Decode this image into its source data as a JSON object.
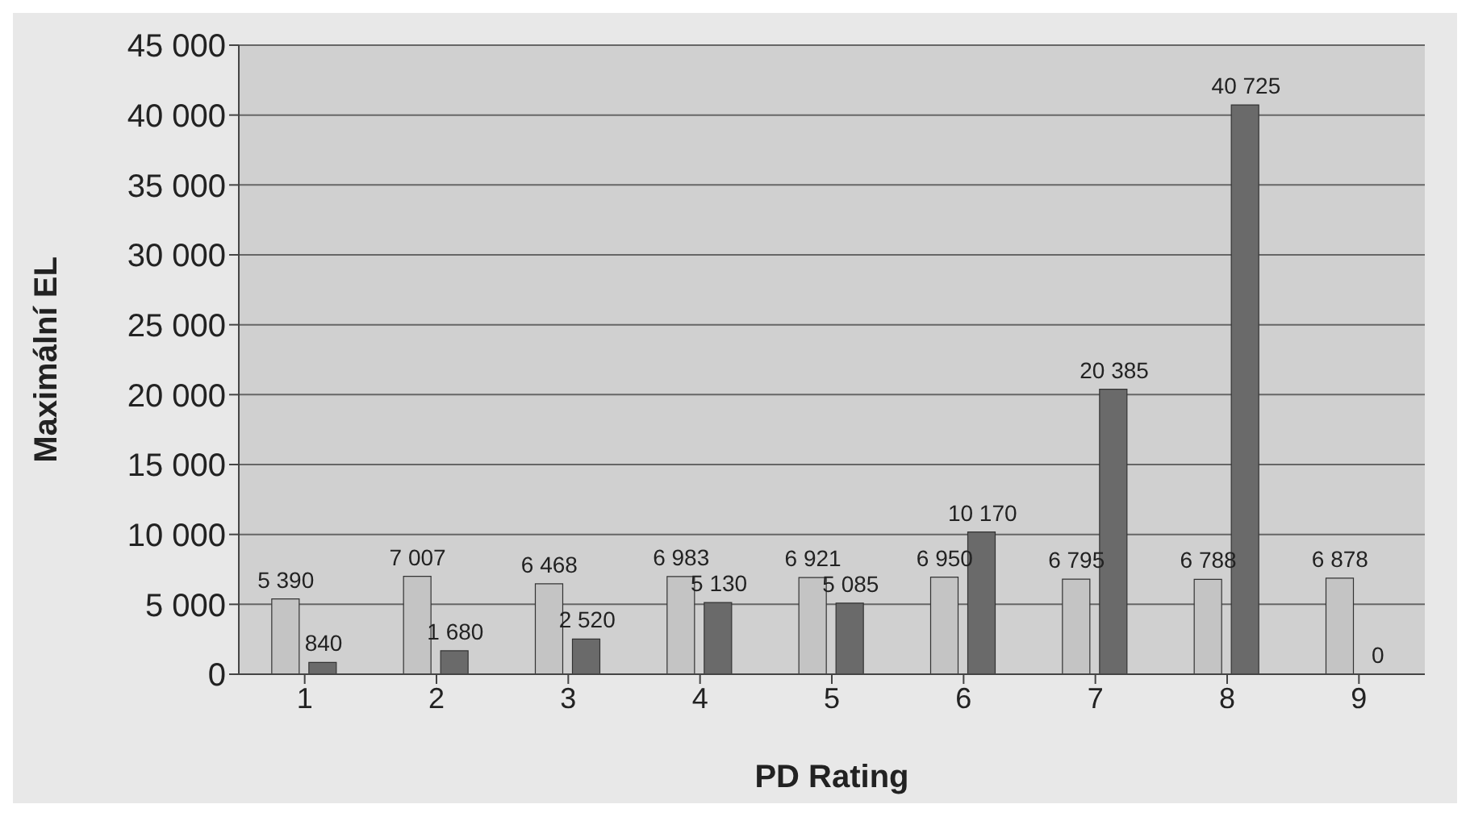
{
  "chart_data": {
    "type": "bar",
    "xlabel": "PD Rating",
    "ylabel": "Maximální EL",
    "categories": [
      "1",
      "2",
      "3",
      "4",
      "5",
      "6",
      "7",
      "8",
      "9"
    ],
    "series": [
      {
        "color": "#c4c4c4",
        "values": [
          5390,
          7007,
          6468,
          6983,
          6921,
          6950,
          6795,
          6788,
          6878
        ],
        "value_labels": [
          "5 390",
          "7 007",
          "6 468",
          "6 983",
          "6 921",
          "6 950",
          "6 795",
          "6 788",
          "6 878"
        ]
      },
      {
        "color": "#6a6a6a",
        "values": [
          840,
          1680,
          2520,
          5130,
          5085,
          10170,
          20385,
          40725,
          0
        ],
        "value_labels": [
          "840",
          "1 680",
          "2 520",
          "5 130",
          "5 085",
          "10 170",
          "20 385",
          "40 725",
          "0"
        ]
      }
    ],
    "ylim": [
      0,
      45000
    ],
    "yticks": [
      {
        "value": 0,
        "label": "0"
      },
      {
        "value": 5000,
        "label": "5 000"
      },
      {
        "value": 10000,
        "label": "10 000"
      },
      {
        "value": 15000,
        "label": "15 000"
      },
      {
        "value": 20000,
        "label": "20 000"
      },
      {
        "value": 25000,
        "label": "25 000"
      },
      {
        "value": 30000,
        "label": "30 000"
      },
      {
        "value": 35000,
        "label": "35 000"
      },
      {
        "value": 40000,
        "label": "40 000"
      },
      {
        "value": 45000,
        "label": "45 000"
      }
    ],
    "grid": "y",
    "legend": false
  }
}
